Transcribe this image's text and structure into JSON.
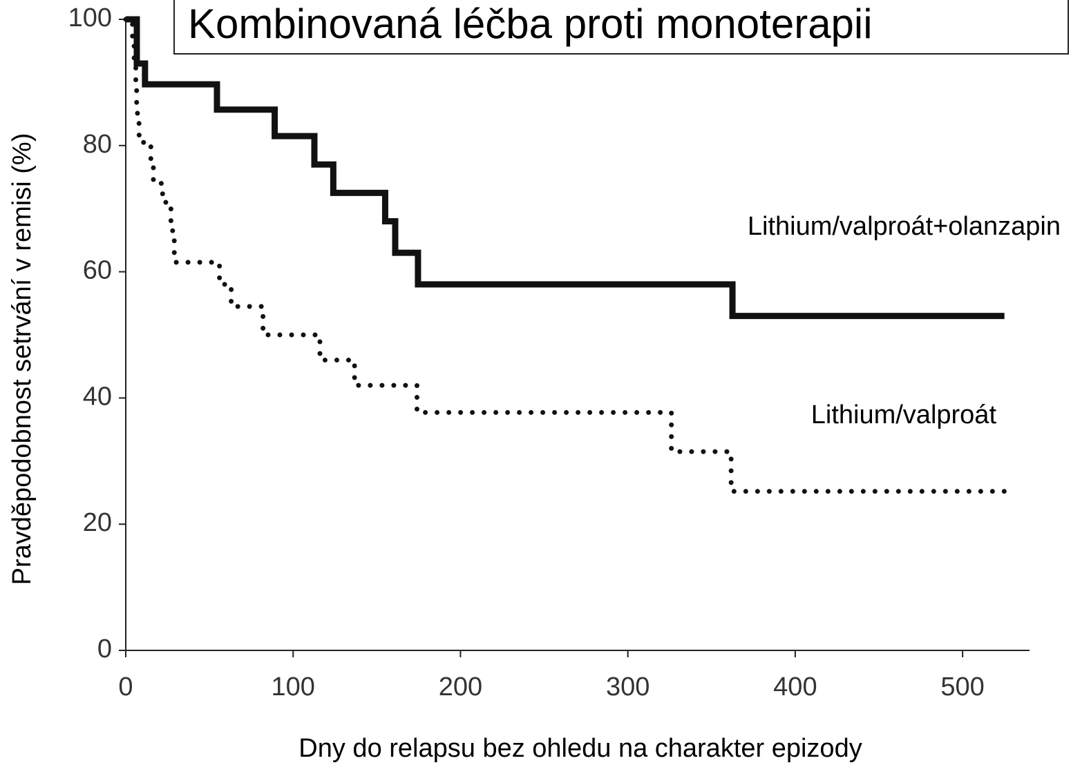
{
  "chart_data": {
    "type": "line",
    "step": "post",
    "title": "Kombinovaná léčba proti monoterapii",
    "x_label": "Dny do relapsu bez ohledu na charakter epizody",
    "y_label": "Pravděpodobnost setrvání v remisi (%)",
    "xlim": [
      0,
      540
    ],
    "ylim": [
      0,
      100
    ],
    "xticks": [
      0,
      100,
      200,
      300,
      400,
      500
    ],
    "yticks": [
      0,
      20,
      40,
      60,
      80,
      100
    ],
    "series": [
      {
        "name": "Lithium/valproát+olanzapin",
        "color": "#111111",
        "style": "solid",
        "x": [
          0,
          6.6,
          11.5,
          54.5,
          89,
          112.7,
          124,
          155,
          161,
          174.6,
          362.5,
          525
        ],
        "values": [
          100,
          93,
          89.7,
          85.7,
          81.5,
          77,
          72.5,
          68,
          63,
          58,
          53,
          53
        ]
      },
      {
        "name": "Lithium/valproát",
        "color": "#111111",
        "style": "dotted",
        "x": [
          0,
          4,
          5,
          6,
          6.5,
          7,
          8,
          15,
          16.5,
          22,
          27,
          28,
          29,
          56,
          63,
          82,
          116,
          136.7,
          174,
          326,
          361.7,
          527.7
        ],
        "values": [
          100,
          96.5,
          93,
          90,
          86,
          83.5,
          80.5,
          77,
          74,
          71,
          68,
          65,
          61.5,
          58,
          54.5,
          50,
          46,
          42,
          37.7,
          31.5,
          25.2,
          25.2
        ]
      }
    ]
  }
}
